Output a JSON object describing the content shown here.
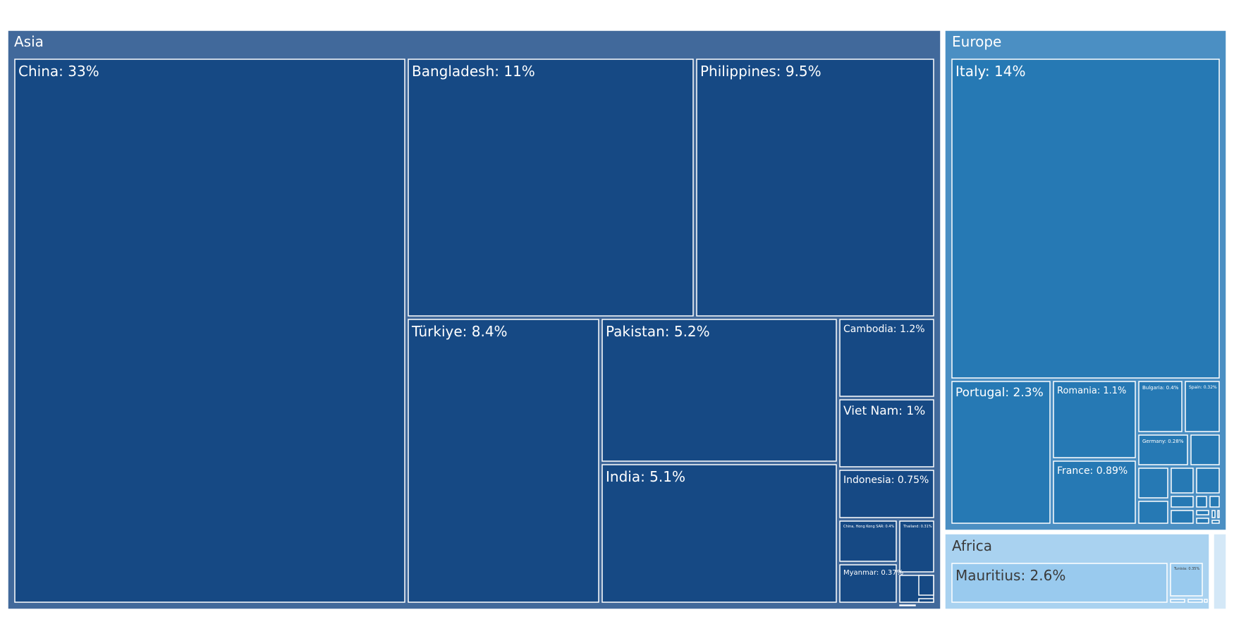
{
  "chart_data": {
    "type": "treemap",
    "title": "",
    "groups": [
      {
        "name": "Asia",
        "color": "#41699b",
        "cell_color": "#164984",
        "text_color": "#ffffff",
        "items": [
          {
            "label": "China: 33%",
            "value": 33
          },
          {
            "label": "Bangladesh: 11%",
            "value": 11
          },
          {
            "label": "Philippines: 9.5%",
            "value": 9.5
          },
          {
            "label": "Türkiye: 8.4%",
            "value": 8.4
          },
          {
            "label": "Pakistan: 5.2%",
            "value": 5.2
          },
          {
            "label": "India: 5.1%",
            "value": 5.1
          },
          {
            "label": "Cambodia: 1.2%",
            "value": 1.2
          },
          {
            "label": "Viet Nam: 1%",
            "value": 1
          },
          {
            "label": "Indonesia: 0.75%",
            "value": 0.75
          },
          {
            "label": "China, Hong Kong SAR: 0.4%",
            "value": 0.4
          },
          {
            "label": "Thailand: 0.31%",
            "value": 0.31
          },
          {
            "label": "Myanmar: 0.37%",
            "value": 0.37
          }
        ]
      },
      {
        "name": "Europe",
        "color": "#4b8fc3",
        "cell_color": "#2679b4",
        "text_color": "#ffffff",
        "items": [
          {
            "label": "Italy: 14%",
            "value": 14
          },
          {
            "label": "Portugal: 2.3%",
            "value": 2.3
          },
          {
            "label": "Romania: 1.1%",
            "value": 1.1
          },
          {
            "label": "France: 0.89%",
            "value": 0.89
          },
          {
            "label": "Bulgaria: 0.4%",
            "value": 0.4
          },
          {
            "label": "Spain: 0.32%",
            "value": 0.32
          },
          {
            "label": "Germany: 0.28%",
            "value": 0.28
          }
        ]
      },
      {
        "name": "Africa",
        "color": "#a9d2f0",
        "cell_color": "#99caee",
        "text_color": "#3a3a3a",
        "items": [
          {
            "label": "Mauritius: 2.6%",
            "value": 2.6
          },
          {
            "label": "Tunisia: 0.35%",
            "value": 0.35
          }
        ]
      }
    ]
  }
}
